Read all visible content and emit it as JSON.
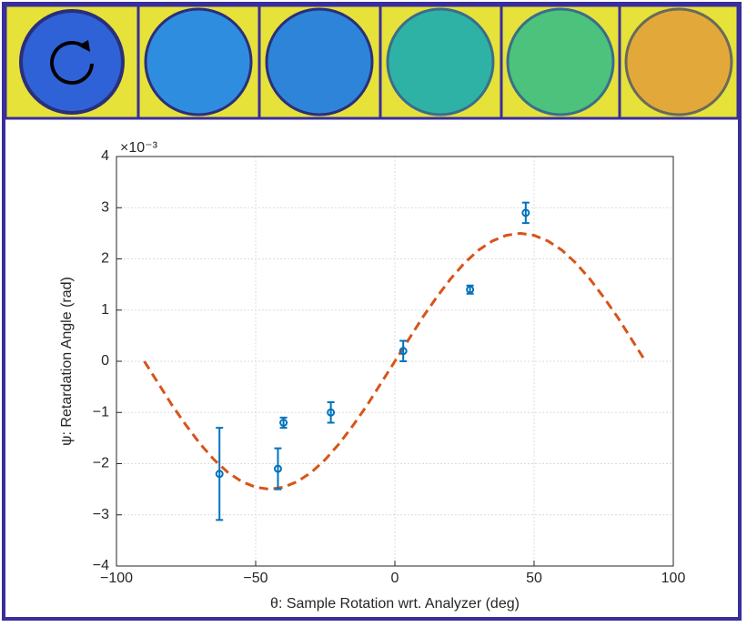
{
  "chart_data": {
    "type": "scatter",
    "xlabel": "θ: Sample Rotation wrt. Analyzer (deg)",
    "ylabel": "ψ: Retardation Angle (rad)",
    "y_multiplier": "×10⁻³",
    "xlim": [
      -100,
      100
    ],
    "ylim": [
      -4,
      4
    ],
    "xticks": [
      {
        "value": -100,
        "label": "−100"
      },
      {
        "value": -50,
        "label": "−50"
      },
      0,
      50,
      100
    ],
    "yticks": [
      {
        "value": -4,
        "label": "−4"
      },
      {
        "value": -3,
        "label": "−3"
      },
      {
        "value": -2,
        "label": "−2"
      },
      {
        "value": -1,
        "label": "−1"
      },
      0,
      1,
      2,
      3,
      4
    ],
    "grid": true,
    "series": [
      {
        "color": "#0072bd",
        "x": [
          -63,
          -42,
          -40,
          -23,
          3,
          27,
          47
        ],
        "values": [
          -2.2,
          -2.1,
          -1.2,
          -1.0,
          0.2,
          1.4,
          2.9
        ],
        "errors": [
          0.9,
          0.4,
          0.1,
          0.2,
          0.2,
          0.08,
          0.2
        ]
      },
      {
        "color": "#d95319",
        "style": "dashed",
        "x": [
          -90,
          -85,
          -80,
          -75,
          -70,
          -65,
          -60,
          -55,
          -50,
          -45,
          -40,
          -35,
          -30,
          -25,
          -20,
          -15,
          -10,
          -5,
          0,
          5,
          10,
          15,
          20,
          25,
          30,
          35,
          40,
          45,
          50,
          55,
          60,
          65,
          70,
          75,
          80,
          85,
          90
        ],
        "values": [
          0,
          -0.43,
          -0.86,
          -1.25,
          -1.61,
          -1.92,
          -2.17,
          -2.35,
          -2.46,
          -2.5,
          -2.46,
          -2.35,
          -2.17,
          -1.92,
          -1.61,
          -1.25,
          -0.86,
          -0.43,
          0,
          0.43,
          0.86,
          1.25,
          1.61,
          1.92,
          2.17,
          2.35,
          2.46,
          2.5,
          2.46,
          2.35,
          2.17,
          1.92,
          1.61,
          1.25,
          0.86,
          0.43,
          0
        ]
      }
    ]
  }
}
